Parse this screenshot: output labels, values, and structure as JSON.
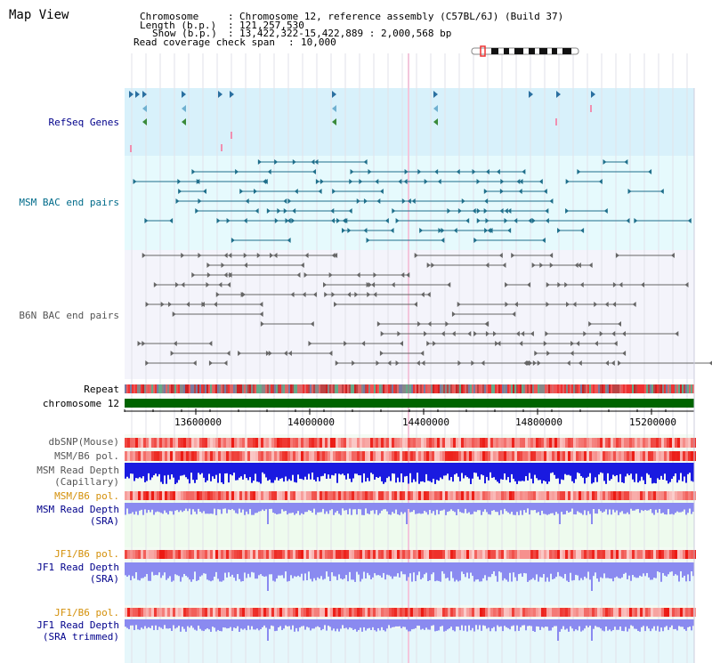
{
  "page": {
    "title": "Map View"
  },
  "info": {
    "chromosome_label": "Chromosome",
    "chromosome_value": "Chromosome 12, reference assembly (C57BL/6J) (Build 37)",
    "length_label": "Length (b.p.)",
    "length_value": "121,257,530",
    "show_label": "Show (b.p.)",
    "show_value": "13,422,322-15,422,889 : 2,000,568 bp",
    "coverage_label": "Read coverage check span",
    "coverage_value": "10,000"
  },
  "tracks": {
    "refseq": "RefSeq Genes",
    "msm_bac": "MSM BAC end pairs",
    "b6n_bac": "B6N BAC end pairs",
    "repeat": "Repeat",
    "chromosome": "chromosome 12",
    "dbsnp": "dbSNP(Mouse)",
    "msm_b6_pol_1": "MSM/B6 pol.",
    "msm_read_depth_cap": "MSM Read Depth",
    "msm_read_depth_cap_sub": "(Capillary)",
    "msm_b6_pol_2": "MSM/B6 pol.",
    "msm_read_depth_sra": "MSM Read Depth",
    "msm_read_depth_sra_sub": "(SRA)",
    "jf1_b6_pol_1": "JF1/B6 pol.",
    "jf1_read_depth_sra": "JF1 Read Depth",
    "jf1_read_depth_sra_sub": "(SRA)",
    "jf1_b6_pol_2": "JF1/B6 pol.",
    "jf1_read_depth_trim": "JF1 Read Depth",
    "jf1_read_depth_trim_sub": "(SRA trimmed)"
  },
  "axis": {
    "ticks": [
      "13600000",
      "14000000",
      "14400000",
      "14800000",
      "15200000"
    ]
  },
  "colors": {
    "refseq_bg": "#d8f1fb",
    "msm_bg": "#e6fafd",
    "b6n_bg": "#f4f4fb",
    "chromosome_bar": "#006400",
    "snp_red": "#e8403a",
    "depth_blue": "#1a1ae0",
    "depth_lavender": "#8a8af0"
  }
}
